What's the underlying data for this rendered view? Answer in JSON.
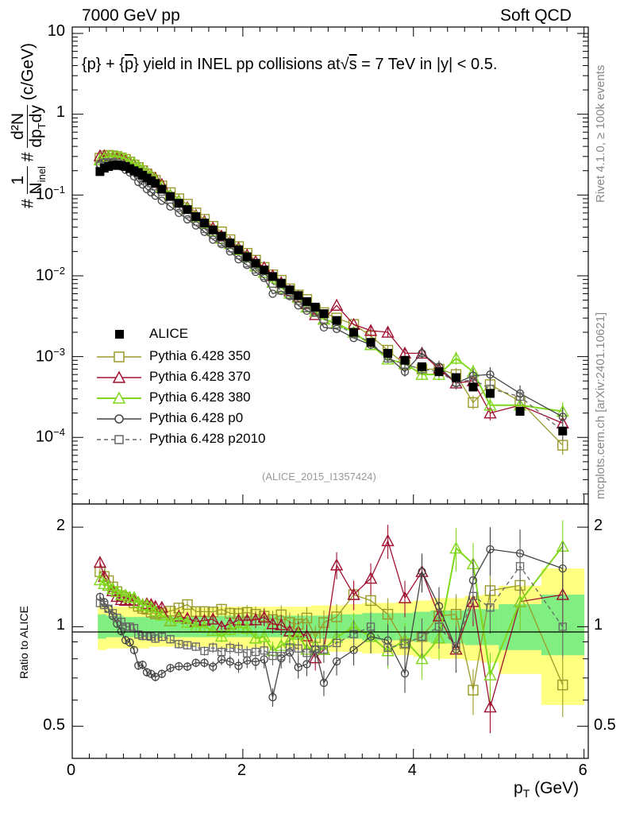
{
  "header": {
    "left": "7000 GeV pp",
    "right": "Soft QCD"
  },
  "side_labels": {
    "rivet": "Rivet 4.1.0, ≥ 100k events",
    "mcplots": "mcplots.cern.ch [arXiv:2401.10621]"
  },
  "colors": {
    "alice": "#000000",
    "p350": "#9a9a2a",
    "p370": "#a01030",
    "p380": "#80d81c",
    "p0": "#444444",
    "p2010": "#666666",
    "band_yellow": "#ffff80",
    "band_green": "#80ee80"
  },
  "chart_data": [
    {
      "type": "line",
      "title": "{p} + {p̄} yield in INEL pp collisions at √s = 7 TeV in |y| < 0.5.",
      "title_parts": [
        "{p} + {",
        "p",
        "} yield in INEL pp collisions at",
        "s",
        " =  7 TeV in |y| < 0.5."
      ],
      "ylabel": "#1/N_inel # d²N/dp_T dy (c/GeV)",
      "ylabel_parts": {
        "frac1_num": "#",
        "frac1_one": "1",
        "frac1_den": "N",
        "frac1_den_sub": "inel",
        "frac2_num_hash": "#",
        "frac2_num": "d²N",
        "frac2_den_a": "dp",
        "frac2_den_sub": "T",
        "frac2_den_b": "dy",
        "unit": "(c/GeV)"
      },
      "yscale": "log",
      "ylim": [
        1.5e-05,
        12
      ],
      "xlim": [
        0,
        6.05
      ],
      "y_tick_labels": [
        {
          "base": "10",
          "exp": "",
          "value": 10
        },
        {
          "base": "1",
          "exp": "",
          "value": 1
        },
        {
          "base": "10",
          "exp": "−1",
          "value": 0.1
        },
        {
          "base": "10",
          "exp": "−2",
          "value": 0.01
        },
        {
          "base": "10",
          "exp": "−3",
          "value": 0.001
        },
        {
          "base": "10",
          "exp": "−4",
          "value": 0.0001
        }
      ],
      "x": [
        0.325,
        0.375,
        0.425,
        0.475,
        0.525,
        0.575,
        0.625,
        0.675,
        0.725,
        0.775,
        0.825,
        0.875,
        0.925,
        0.975,
        1.05,
        1.15,
        1.25,
        1.35,
        1.45,
        1.55,
        1.65,
        1.75,
        1.85,
        1.95,
        2.05,
        2.15,
        2.25,
        2.35,
        2.45,
        2.55,
        2.65,
        2.75,
        2.85,
        2.95,
        3.1,
        3.3,
        3.5,
        3.7,
        3.9,
        4.1,
        4.3,
        4.5,
        4.7,
        4.9,
        5.25,
        5.75
      ],
      "series": [
        {
          "name": "ALICE",
          "key": "alice",
          "values": [
            0.195,
            0.215,
            0.225,
            0.232,
            0.235,
            0.232,
            0.225,
            0.212,
            0.2,
            0.19,
            0.176,
            0.162,
            0.15,
            0.139,
            0.118,
            0.096,
            0.079,
            0.066,
            0.054,
            0.045,
            0.037,
            0.031,
            0.0255,
            0.021,
            0.0172,
            0.0143,
            0.0118,
            0.0098,
            0.0081,
            0.0067,
            0.0057,
            0.0048,
            0.0041,
            0.0034,
            0.0028,
            0.002,
            0.0015,
            0.0011,
            0.0009,
            0.00075,
            0.00065,
            0.00055,
            0.00042,
            0.00035,
            0.00021,
            0.00012
          ]
        },
        {
          "name": "Pythia 6.428 350",
          "key": "p350",
          "values": [
            0.286,
            0.305,
            0.31,
            0.306,
            0.3,
            0.288,
            0.276,
            0.256,
            0.236,
            0.219,
            0.2,
            0.183,
            0.166,
            0.152,
            0.13,
            0.107,
            0.09,
            0.077,
            0.06,
            0.05,
            0.041,
            0.035,
            0.028,
            0.023,
            0.019,
            0.0156,
            0.0127,
            0.0103,
            0.0088,
            0.0069,
            0.0058,
            0.0051,
            0.0038,
            0.0035,
            0.003,
            0.0025,
            0.0018,
            0.0012,
            0.0008,
            0.0007,
            0.0007,
            0.0006,
            0.00027,
            0.00045,
            0.00028,
            8e-05
          ]
        },
        {
          "name": "Pythia 6.428 370",
          "key": "p370",
          "values": [
            0.305,
            0.305,
            0.3,
            0.298,
            0.29,
            0.28,
            0.27,
            0.255,
            0.24,
            0.225,
            0.205,
            0.19,
            0.175,
            0.16,
            0.135,
            0.1,
            0.085,
            0.07,
            0.056,
            0.047,
            0.039,
            0.031,
            0.026,
            0.022,
            0.018,
            0.015,
            0.0126,
            0.01,
            0.0082,
            0.0065,
            0.0055,
            0.0045,
            0.0033,
            0.0029,
            0.0043,
            0.0025,
            0.0021,
            0.002,
            0.0011,
            0.0011,
            0.0007,
            0.00047,
            0.0005,
            0.0002,
            0.00025,
            0.00015
          ]
        },
        {
          "name": "Pythia 6.428 380",
          "key": "p380",
          "values": [
            0.27,
            0.29,
            0.3,
            0.302,
            0.3,
            0.29,
            0.28,
            0.26,
            0.245,
            0.225,
            0.205,
            0.188,
            0.172,
            0.155,
            0.128,
            0.1,
            0.084,
            0.068,
            0.054,
            0.045,
            0.036,
            0.029,
            0.025,
            0.021,
            0.017,
            0.0132,
            0.011,
            0.0083,
            0.0071,
            0.0061,
            0.0054,
            0.0041,
            0.0036,
            0.0029,
            0.0026,
            0.002,
            0.0014,
            0.00093,
            0.00082,
            0.0006,
            0.0006,
            0.00095,
            0.00065,
            0.00025,
            0.00025,
            0.00021
          ]
        },
        {
          "name": "Pythia 6.428 p0",
          "key": "p0",
          "values": [
            0.24,
            0.255,
            0.255,
            0.25,
            0.24,
            0.225,
            0.205,
            0.19,
            0.17,
            0.145,
            0.135,
            0.118,
            0.108,
            0.098,
            0.085,
            0.072,
            0.06,
            0.05,
            0.042,
            0.035,
            0.028,
            0.0247,
            0.02,
            0.016,
            0.0136,
            0.0112,
            0.0094,
            0.006,
            0.0065,
            0.0056,
            0.0043,
            0.0037,
            0.0035,
            0.0023,
            0.0022,
            0.0017,
            0.0014,
            0.001,
            0.00065,
            0.0011,
            0.00075,
            0.00047,
            0.00058,
            0.0006,
            0.00035,
            0.00018
          ]
        },
        {
          "name": "Pythia 6.428 p2010",
          "key": "p2010",
          "values": [
            0.23,
            0.25,
            0.255,
            0.255,
            0.25,
            0.24,
            0.225,
            0.212,
            0.198,
            0.18,
            0.165,
            0.152,
            0.14,
            0.128,
            0.11,
            0.088,
            0.07,
            0.058,
            0.047,
            0.038,
            0.032,
            0.026,
            0.022,
            0.018,
            0.0143,
            0.012,
            0.01,
            0.008,
            0.0066,
            0.0058,
            0.0049,
            0.004,
            0.0035,
            0.0029,
            0.0025,
            0.0019,
            0.0015,
            0.00095,
            0.0008,
            0.0007,
            0.00065,
            0.00048,
            0.00052,
            0.0004,
            0.00032,
            0.00012
          ]
        }
      ],
      "annotation": "(ALICE_2015_I1357424)"
    },
    {
      "type": "line",
      "title": "",
      "ylabel": "Ratio to ALICE",
      "xlabel": "p_T (GeV)",
      "xlabel_parts": {
        "p": "p",
        "sub": "T",
        "rest": " (GeV)"
      },
      "yscale": "log",
      "ylim": [
        0.4,
        2.35
      ],
      "xlim": [
        0,
        6.05
      ],
      "x_tick_labels": [
        "0",
        "2",
        "4",
        "6"
      ],
      "y_tick_labels": [
        "2",
        "1",
        "0.5"
      ],
      "band_edges": [
        0.3,
        0.4,
        0.5,
        0.6,
        0.7,
        0.8,
        0.9,
        1.0,
        1.1,
        1.2,
        1.3,
        1.4,
        1.5,
        1.6,
        1.7,
        1.8,
        1.9,
        2.0,
        2.2,
        2.4,
        2.6,
        2.8,
        3.0,
        3.2,
        3.4,
        3.6,
        3.8,
        4.0,
        4.2,
        4.4,
        4.6,
        4.8,
        5.0,
        5.5,
        6.0
      ],
      "band_yellow_hi": [
        1.16,
        1.15,
        1.15,
        1.15,
        1.15,
        1.14,
        1.14,
        1.14,
        1.14,
        1.14,
        1.14,
        1.14,
        1.14,
        1.14,
        1.15,
        1.15,
        1.15,
        1.15,
        1.15,
        1.15,
        1.15,
        1.16,
        1.16,
        1.17,
        1.18,
        1.18,
        1.19,
        1.2,
        1.22,
        1.22,
        1.24,
        1.25,
        1.33,
        1.5
      ],
      "band_yellow_lo": [
        0.85,
        0.86,
        0.86,
        0.86,
        0.86,
        0.86,
        0.87,
        0.87,
        0.87,
        0.87,
        0.87,
        0.87,
        0.87,
        0.87,
        0.86,
        0.86,
        0.86,
        0.86,
        0.86,
        0.86,
        0.85,
        0.85,
        0.84,
        0.84,
        0.83,
        0.83,
        0.82,
        0.81,
        0.8,
        0.8,
        0.79,
        0.78,
        0.72,
        0.58
      ],
      "band_green_hi": [
        1.09,
        1.08,
        1.08,
        1.07,
        1.07,
        1.07,
        1.07,
        1.07,
        1.07,
        1.07,
        1.07,
        1.07,
        1.07,
        1.07,
        1.08,
        1.08,
        1.08,
        1.08,
        1.08,
        1.08,
        1.08,
        1.08,
        1.09,
        1.09,
        1.1,
        1.1,
        1.1,
        1.11,
        1.12,
        1.12,
        1.13,
        1.13,
        1.17,
        1.25
      ],
      "band_green_lo": [
        0.92,
        0.93,
        0.93,
        0.93,
        0.93,
        0.93,
        0.93,
        0.93,
        0.93,
        0.93,
        0.93,
        0.93,
        0.93,
        0.93,
        0.93,
        0.93,
        0.93,
        0.93,
        0.93,
        0.93,
        0.92,
        0.92,
        0.92,
        0.92,
        0.91,
        0.91,
        0.91,
        0.9,
        0.89,
        0.89,
        0.88,
        0.88,
        0.85,
        0.82
      ]
    }
  ],
  "legend_title": "ALICE",
  "legend": [
    "ALICE",
    "Pythia 6.428 350",
    "Pythia 6.428 370",
    "Pythia 6.428 380",
    "Pythia 6.428 p0",
    "Pythia 6.428 p2010"
  ]
}
